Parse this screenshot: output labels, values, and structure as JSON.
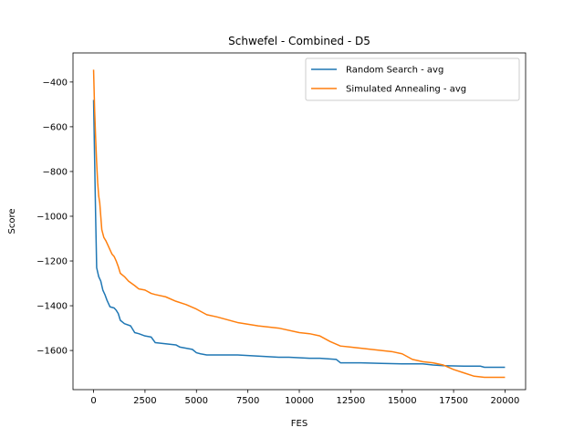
{
  "chart_data": {
    "type": "line",
    "title": "Schwefel - Combined - D5",
    "xlabel": "FES",
    "ylabel": "Score",
    "xlim": [
      -1000,
      21000
    ],
    "ylim": [
      -1775,
      -270
    ],
    "xticks": [
      0,
      2500,
      5000,
      7500,
      10000,
      12500,
      15000,
      17500,
      20000
    ],
    "xtick_labels": [
      "0",
      "2500",
      "5000",
      "7500",
      "10000",
      "12500",
      "15000",
      "17500",
      "20000"
    ],
    "yticks": [
      -400,
      -600,
      -800,
      -1000,
      -1200,
      -1400,
      -1600
    ],
    "ytick_labels": [
      "−400",
      "−600",
      "−800",
      "−1000",
      "−1200",
      "−1400",
      "−1600"
    ],
    "grid": false,
    "legend_position": "top-right",
    "series": [
      {
        "name": "Random Search - avg",
        "color": "#1f77b4",
        "x": [
          0,
          100,
          150,
          250,
          350,
          450,
          550,
          650,
          800,
          1000,
          1100,
          1200,
          1300,
          1500,
          1800,
          2000,
          2200,
          2500,
          2800,
          3000,
          3500,
          4000,
          4200,
          4500,
          4800,
          5000,
          5200,
          5500,
          6000,
          7000,
          8000,
          9000,
          9500,
          10500,
          11000,
          11800,
          12000,
          12500,
          13000,
          14000,
          15000,
          16000,
          16500,
          17000,
          18000,
          18800,
          19000,
          20000
        ],
        "y": [
          -480,
          -1000,
          -1230,
          -1270,
          -1290,
          -1330,
          -1350,
          -1375,
          -1405,
          -1410,
          -1420,
          -1435,
          -1465,
          -1480,
          -1490,
          -1520,
          -1525,
          -1535,
          -1540,
          -1565,
          -1570,
          -1575,
          -1585,
          -1590,
          -1595,
          -1610,
          -1615,
          -1620,
          -1620,
          -1620,
          -1625,
          -1630,
          -1630,
          -1635,
          -1635,
          -1640,
          -1655,
          -1655,
          -1655,
          -1658,
          -1660,
          -1660,
          -1665,
          -1668,
          -1670,
          -1670,
          -1675,
          -1675
        ]
      },
      {
        "name": "Simulated Annealing - avg",
        "color": "#ff7f0e",
        "x": [
          0,
          50,
          100,
          150,
          200,
          250,
          300,
          400,
          500,
          600,
          700,
          800,
          900,
          1000,
          1100,
          1200,
          1300,
          1500,
          1700,
          2000,
          2200,
          2500,
          2800,
          3000,
          3500,
          4000,
          4500,
          5000,
          5500,
          6000,
          7000,
          8000,
          9000,
          10000,
          10500,
          11000,
          11500,
          12000,
          13000,
          14000,
          14500,
          15000,
          15500,
          16000,
          16500,
          17000,
          17500,
          18000,
          18500,
          19000,
          20000
        ],
        "y": [
          -345,
          -520,
          -650,
          -760,
          -850,
          -910,
          -940,
          -1060,
          -1095,
          -1110,
          -1130,
          -1150,
          -1170,
          -1180,
          -1200,
          -1225,
          -1255,
          -1270,
          -1290,
          -1310,
          -1325,
          -1330,
          -1345,
          -1350,
          -1360,
          -1380,
          -1395,
          -1415,
          -1440,
          -1450,
          -1475,
          -1490,
          -1500,
          -1520,
          -1525,
          -1535,
          -1560,
          -1580,
          -1590,
          -1600,
          -1605,
          -1615,
          -1640,
          -1650,
          -1655,
          -1665,
          -1685,
          -1700,
          -1715,
          -1720,
          -1720
        ]
      }
    ]
  }
}
